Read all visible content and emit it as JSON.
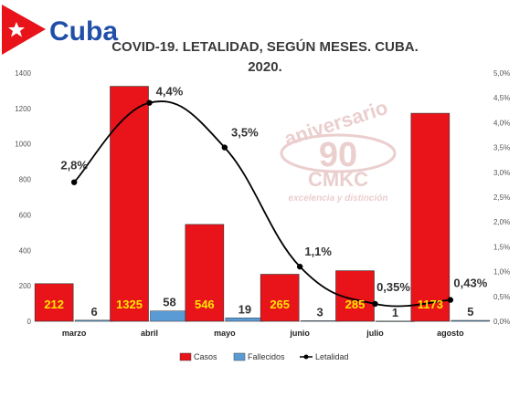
{
  "logo": {
    "text": "Cuba"
  },
  "watermark": {
    "top": "aniversario",
    "number": "90",
    "brand": "CMKC",
    "tagline": "excelencia y distinción"
  },
  "chart_data": {
    "type": "bar",
    "title_lines": [
      "COVID-19. LETALIDAD, SEGÚN MESES. CUBA.",
      "2020."
    ],
    "categories": [
      "marzo",
      "abril",
      "mayo",
      "junio",
      "julio",
      "agosto"
    ],
    "series": [
      {
        "name": "Casos",
        "values": [
          212,
          1325,
          546,
          265,
          285,
          1173
        ],
        "color": "#e8141a",
        "labels": [
          "212",
          "1325",
          "546",
          "265",
          "285",
          "1173"
        ]
      },
      {
        "name": "Fallecidos",
        "values": [
          6,
          58,
          19,
          3,
          1,
          5
        ],
        "color": "#5b9bd5",
        "labels": [
          "6",
          "58",
          "19",
          "3",
          "1",
          "5"
        ]
      },
      {
        "name": "Letalidad",
        "values": [
          2.8,
          4.4,
          3.5,
          1.1,
          0.35,
          0.43
        ],
        "color": "#000000",
        "labels": [
          "2,8%",
          "4,4%",
          "3,5%",
          "1,1%",
          "0,35%",
          "0,43%"
        ],
        "axis": "right"
      }
    ],
    "ylim_left": [
      0,
      1400
    ],
    "yticks_left": [
      "0",
      "200",
      "400",
      "600",
      "800",
      "1000",
      "1200",
      "1400"
    ],
    "ylim_right": [
      0,
      5
    ],
    "yticks_right": [
      "0,0%",
      "0,5%",
      "1,0%",
      "1,5%",
      "2,0%",
      "2,5%",
      "3,0%",
      "3,5%",
      "4,0%",
      "4,5%",
      "5,0%"
    ],
    "legend_position": "bottom",
    "label_color_casos": "#ffe600",
    "grid": false
  }
}
